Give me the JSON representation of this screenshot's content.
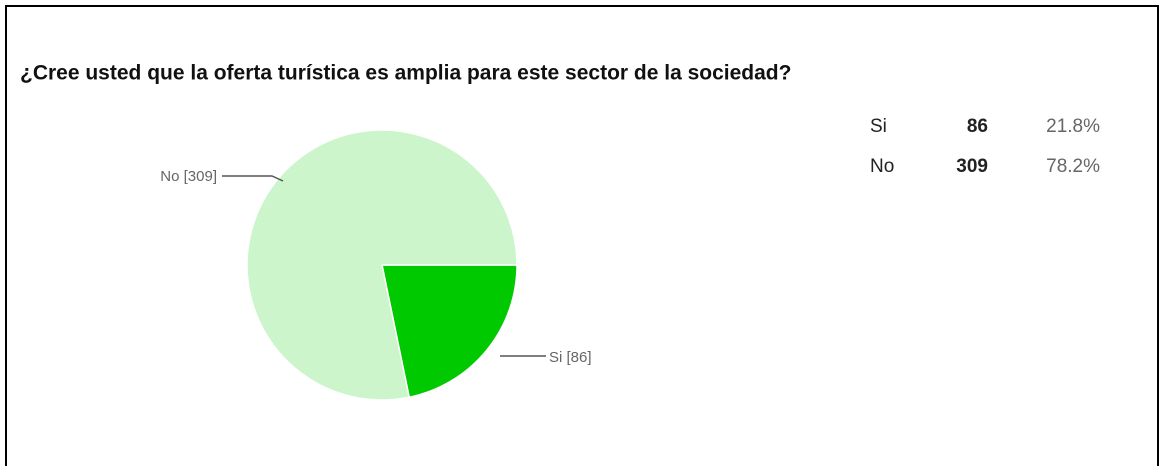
{
  "chart_data": {
    "type": "pie",
    "title": "¿Cree usted que la oferta turística es amplia para este sector de la sociedad?",
    "categories": [
      "Si",
      "No"
    ],
    "values": [
      86,
      309
    ],
    "value_labels": [
      "Si [86]",
      "No [309]"
    ],
    "percentages": [
      21.8,
      78.2
    ],
    "percentage_labels": [
      "21.8%",
      "78.2%"
    ],
    "colors": [
      "#00c900",
      "#ccf5cc"
    ]
  }
}
